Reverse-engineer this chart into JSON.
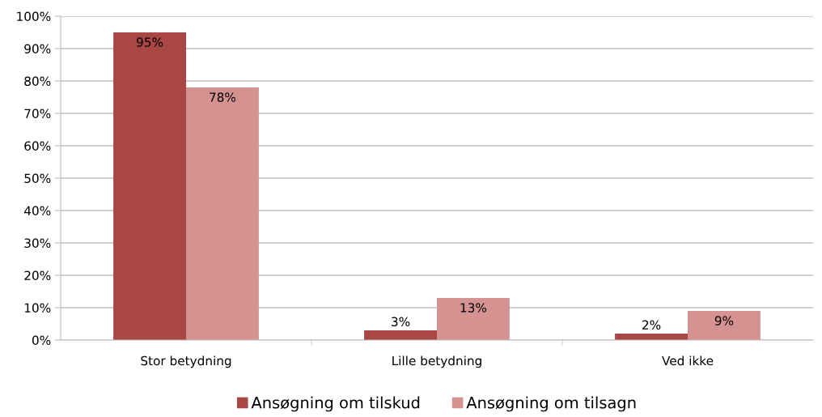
{
  "chart_data": {
    "type": "bar",
    "categories": [
      "Stor betydning",
      "Lille betydning",
      "Ved ikke"
    ],
    "series": [
      {
        "name": "Ansøgning om tilskud",
        "color": "#a84744",
        "values": [
          95,
          3,
          2
        ]
      },
      {
        "name": "Ansøgning om tilsagn",
        "color": "#d49391",
        "values": [
          78,
          13,
          9
        ]
      }
    ],
    "ylim": [
      0,
      100
    ],
    "yticks": [
      {
        "value": 0,
        "label": "0%"
      },
      {
        "value": 10,
        "label": "10%"
      },
      {
        "value": 20,
        "label": "20%"
      },
      {
        "value": 30,
        "label": "30%"
      },
      {
        "value": 40,
        "label": "40%"
      },
      {
        "value": 50,
        "label": "50%"
      },
      {
        "value": 60,
        "label": "60%"
      },
      {
        "value": 70,
        "label": "70%"
      },
      {
        "value": 80,
        "label": "80%"
      },
      {
        "value": 90,
        "label": "90%"
      },
      {
        "value": 100,
        "label": "100%"
      }
    ],
    "value_labels": [
      [
        "95%",
        "3%",
        "2%"
      ],
      [
        "78%",
        "13%",
        "9%"
      ]
    ],
    "grid": "y",
    "legend": "bottom"
  }
}
